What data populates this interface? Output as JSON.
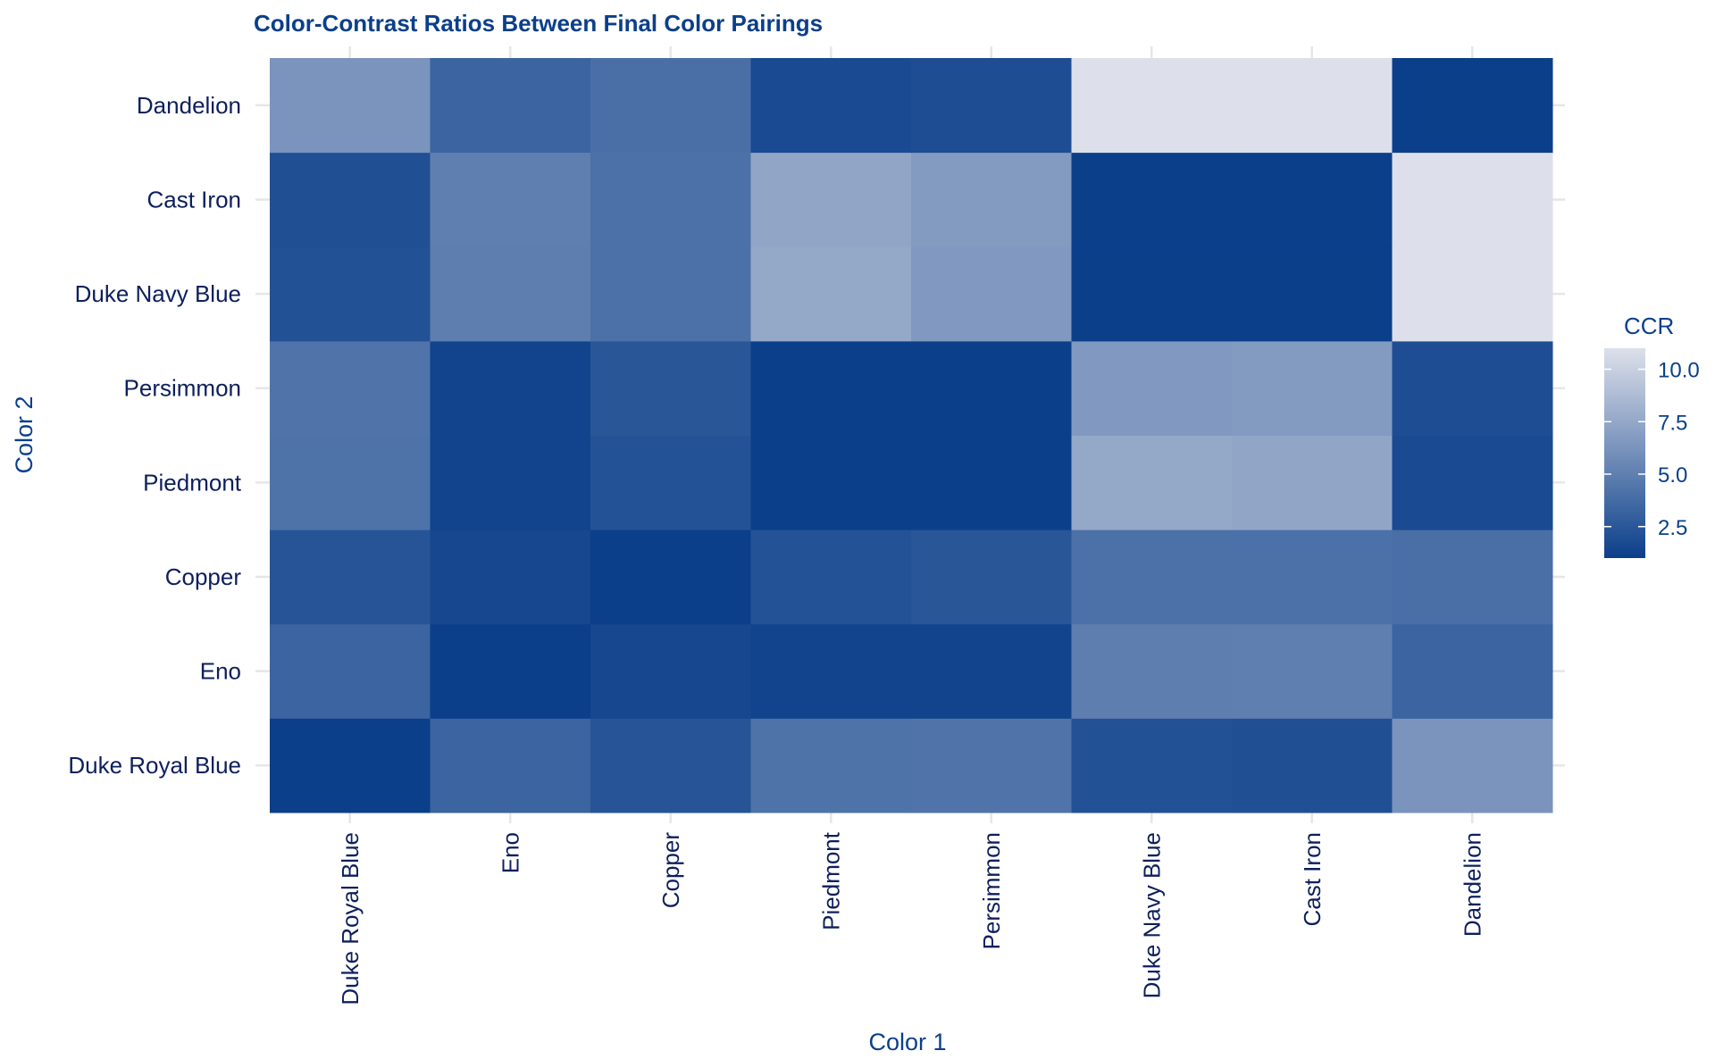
{
  "chart_data": {
    "type": "heatmap",
    "title": "Color-Contrast Ratios Between Final Color Pairings",
    "xlabel": "Color 1",
    "ylabel": "Color 2",
    "x_categories": [
      "Duke Royal Blue",
      "Eno",
      "Copper",
      "Piedmont",
      "Persimmon",
      "Duke Navy Blue",
      "Cast Iron",
      "Dandelion"
    ],
    "y_categories": [
      "Duke Royal Blue",
      "Eno",
      "Copper",
      "Piedmont",
      "Persimmon",
      "Duke Navy Blue",
      "Cast Iron",
      "Dandelion"
    ],
    "values": [
      [
        1.0,
        3.3,
        2.3,
        4.2,
        4.3,
        2.1,
        2.0,
        6.3
      ],
      [
        3.3,
        1.0,
        1.5,
        1.3,
        1.3,
        4.9,
        5.0,
        3.3
      ],
      [
        2.3,
        1.5,
        1.0,
        2.2,
        2.4,
        4.1,
        4.1,
        4.0
      ],
      [
        4.2,
        1.3,
        2.2,
        1.0,
        1.0,
        7.5,
        7.4,
        1.7
      ],
      [
        4.3,
        1.3,
        2.4,
        1.0,
        1.0,
        6.6,
        6.7,
        1.9
      ],
      [
        2.1,
        4.9,
        4.1,
        7.5,
        6.6,
        1.0,
        1.0,
        11.0
      ],
      [
        2.0,
        5.0,
        4.1,
        7.4,
        6.7,
        1.0,
        1.0,
        11.0
      ],
      [
        6.3,
        3.3,
        4.0,
        1.7,
        1.9,
        11.0,
        11.0,
        1.0
      ]
    ],
    "legend": {
      "title": "CCR",
      "ticks": [
        2.5,
        5.0,
        7.5,
        10.0
      ],
      "tick_labels": [
        "2.5",
        "5.0",
        "7.5",
        "10.0"
      ],
      "range": [
        1.0,
        11.0
      ],
      "placement": "right"
    },
    "colors": {
      "low": "#0b3f8a",
      "high": "#dde0ea",
      "text": "#0d1f5c",
      "title": "#0b3f8a",
      "grid": "#e6e6e6"
    },
    "grid": true
  }
}
